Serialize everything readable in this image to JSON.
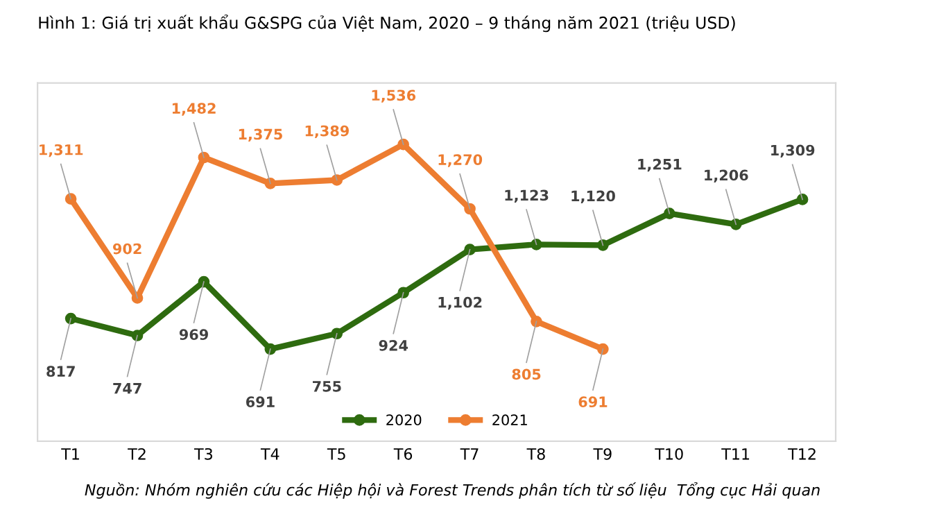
{
  "chart_data": {
    "type": "line",
    "title": "Hình 1: Giá trị xuất khẩu G&SPG của Việt Nam, 2020 – 9 tháng năm 2021 (triệu USD)",
    "categories": [
      "T1",
      "T2",
      "T3",
      "T4",
      "T5",
      "T6",
      "T7",
      "T8",
      "T9",
      "T10",
      "T11",
      "T12"
    ],
    "series": [
      {
        "name": "2020",
        "color": "#2e6b0f",
        "values": [
          817,
          747,
          969,
          691,
          755,
          924,
          1102,
          1123,
          1120,
          1251,
          1206,
          1309
        ],
        "value_labels": [
          "817",
          "747",
          "969",
          "691",
          "755",
          "924",
          "1,102",
          "1,123",
          "1,120",
          "1,251",
          "1,206",
          "1,309"
        ]
      },
      {
        "name": "2021",
        "color": "#ed7d31",
        "values": [
          1311,
          902,
          1482,
          1375,
          1389,
          1536,
          1270,
          805,
          691,
          null,
          null,
          null
        ],
        "value_labels": [
          "1,311",
          "902",
          "1,482",
          "1,375",
          "1,389",
          "1,536",
          "1,270",
          "805",
          "691",
          null,
          null,
          null
        ]
      }
    ],
    "marker": "circle",
    "line_style": "solid",
    "grid": false,
    "legend": "bottom",
    "annotations": [
      "Nguồn: Nhóm nghiên cứu các Hiệp hội và Forest Trends phân tích từ số liệu  Tổng cục Hải quan"
    ]
  }
}
